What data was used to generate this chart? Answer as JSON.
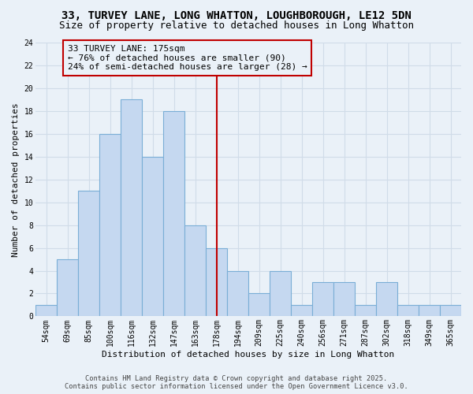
{
  "title": "33, TURVEY LANE, LONG WHATTON, LOUGHBOROUGH, LE12 5DN",
  "subtitle": "Size of property relative to detached houses in Long Whatton",
  "xlabel": "Distribution of detached houses by size in Long Whatton",
  "ylabel": "Number of detached properties",
  "categories": [
    "54sqm",
    "69sqm",
    "85sqm",
    "100sqm",
    "116sqm",
    "132sqm",
    "147sqm",
    "163sqm",
    "178sqm",
    "194sqm",
    "209sqm",
    "225sqm",
    "240sqm",
    "256sqm",
    "271sqm",
    "287sqm",
    "302sqm",
    "318sqm",
    "349sqm",
    "365sqm"
  ],
  "values": [
    1,
    5,
    11,
    16,
    19,
    14,
    18,
    8,
    6,
    4,
    2,
    4,
    1,
    3,
    3,
    1,
    3,
    1,
    1,
    1
  ],
  "bar_color": "#c5d8f0",
  "bar_edgecolor": "#7aaed6",
  "highlight_index": 8,
  "highlight_color": "#c00000",
  "annotation_text": "33 TURVEY LANE: 175sqm\n← 76% of detached houses are smaller (90)\n24% of semi-detached houses are larger (28) →",
  "annotation_box_color": "#c00000",
  "ylim": [
    0,
    24
  ],
  "yticks": [
    0,
    2,
    4,
    6,
    8,
    10,
    12,
    14,
    16,
    18,
    20,
    22,
    24
  ],
  "background_color": "#eaf1f8",
  "grid_color": "#d0dce8",
  "footer_line1": "Contains HM Land Registry data © Crown copyright and database right 2025.",
  "footer_line2": "Contains public sector information licensed under the Open Government Licence v3.0.",
  "title_fontsize": 10,
  "subtitle_fontsize": 9,
  "label_fontsize": 8,
  "tick_fontsize": 7,
  "annotation_fontsize": 8,
  "figwidth": 6.0,
  "figheight": 5.0
}
